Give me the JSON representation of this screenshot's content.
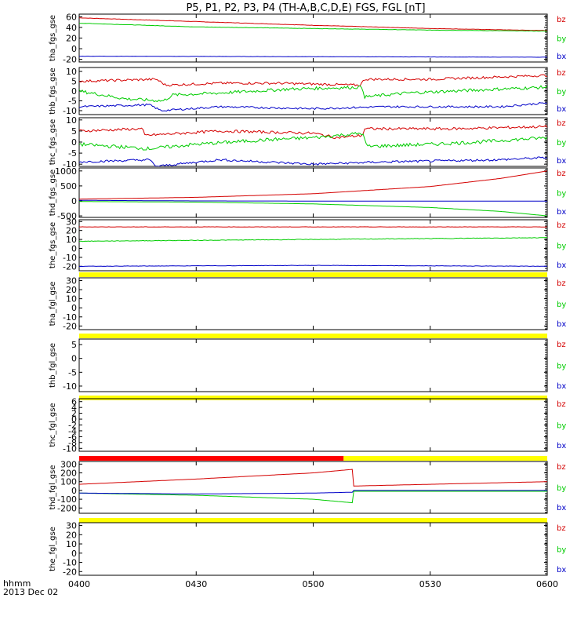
{
  "colors": {
    "bz": "#d40000",
    "by": "#00cc00",
    "bx": "#0000c8",
    "bar_good": "#ffff00",
    "bar_bad": "#ff0000"
  },
  "chart_data": {
    "type": "line",
    "title": "P5, P1, P2, P3, P4 (TH-A,B,C,D,E) FGS, FGL [nT]",
    "time_label": "hhmm",
    "date_label": "2013 Dec 02",
    "x_ticks": [
      "0400",
      "0430",
      "0500",
      "0530",
      "0600"
    ],
    "x_range_hours": [
      4.0,
      6.0
    ],
    "panels": [
      {
        "ylabel": "tha_fgs_gse",
        "ylim": [
          -25,
          65
        ],
        "yticks": [
          "60",
          "40",
          "20",
          "0",
          "-20"
        ],
        "ytick_values": [
          60,
          40,
          20,
          0,
          -20
        ],
        "series": [
          {
            "name": "bz",
            "points": [
              [
                4.0,
                58
              ],
              [
                4.5,
                51
              ],
              [
                5.0,
                44
              ],
              [
                5.5,
                38
              ],
              [
                6.0,
                34
              ]
            ],
            "noise": 0.3
          },
          {
            "name": "by",
            "points": [
              [
                4.0,
                48
              ],
              [
                4.5,
                41
              ],
              [
                5.0,
                38
              ],
              [
                5.5,
                35
              ],
              [
                6.0,
                33
              ]
            ],
            "noise": 0.3
          },
          {
            "name": "bx",
            "points": [
              [
                4.0,
                -14
              ],
              [
                6.0,
                -16
              ]
            ],
            "noise": 0.2
          }
        ],
        "bar": "none"
      },
      {
        "ylabel": "thb_fgs_gse",
        "ylim": [
          -12,
          12
        ],
        "yticks": [
          "10",
          "5",
          "0",
          "-5",
          "-10"
        ],
        "ytick_values": [
          10,
          5,
          0,
          -5,
          -10
        ],
        "series": [
          {
            "name": "bz",
            "points": [
              [
                4.0,
                5
              ],
              [
                4.33,
                6
              ],
              [
                4.37,
                3
              ],
              [
                4.6,
                4
              ],
              [
                4.85,
                4
              ],
              [
                5.2,
                3
              ],
              [
                5.22,
                6
              ],
              [
                5.5,
                6
              ],
              [
                6.0,
                8
              ]
            ],
            "noise": 0.6
          },
          {
            "name": "by",
            "points": [
              [
                4.0,
                0
              ],
              [
                4.2,
                -4
              ],
              [
                4.36,
                -5
              ],
              [
                4.4,
                -2
              ],
              [
                4.6,
                -1
              ],
              [
                4.9,
                1
              ],
              [
                5.21,
                2
              ],
              [
                5.22,
                -3
              ],
              [
                5.4,
                -1
              ],
              [
                5.6,
                0
              ],
              [
                6.0,
                2
              ]
            ],
            "noise": 0.8
          },
          {
            "name": "bx",
            "points": [
              [
                4.0,
                -8
              ],
              [
                4.3,
                -7
              ],
              [
                4.35,
                -10
              ],
              [
                4.6,
                -8
              ],
              [
                5.0,
                -9
              ],
              [
                5.3,
                -8
              ],
              [
                5.8,
                -8
              ],
              [
                6.0,
                -6
              ]
            ],
            "noise": 0.5
          }
        ],
        "bar": "none"
      },
      {
        "ylabel": "thc_fgs_gse",
        "ylim": [
          -11,
          11
        ],
        "yticks": [
          "10",
          "5",
          "0",
          "-5",
          "-10"
        ],
        "ytick_values": [
          10,
          5,
          0,
          -5,
          -10
        ],
        "series": [
          {
            "name": "bz",
            "points": [
              [
                4.0,
                5
              ],
              [
                4.27,
                6
              ],
              [
                4.28,
                3
              ],
              [
                4.6,
                5
              ],
              [
                5.0,
                4
              ],
              [
                5.1,
                2
              ],
              [
                5.21,
                3
              ],
              [
                5.22,
                6
              ],
              [
                5.6,
                6
              ],
              [
                6.0,
                7
              ]
            ],
            "noise": 0.6
          },
          {
            "name": "by",
            "points": [
              [
                4.0,
                -1
              ],
              [
                4.3,
                -3
              ],
              [
                4.5,
                -1
              ],
              [
                4.8,
                1
              ],
              [
                5.0,
                2
              ],
              [
                5.21,
                4
              ],
              [
                5.23,
                -2
              ],
              [
                5.5,
                -1
              ],
              [
                5.7,
                0
              ],
              [
                6.0,
                2
              ]
            ],
            "noise": 0.8
          },
          {
            "name": "bx",
            "points": [
              [
                4.0,
                -9
              ],
              [
                4.3,
                -8
              ],
              [
                4.33,
                -11
              ],
              [
                4.6,
                -8
              ],
              [
                5.0,
                -10
              ],
              [
                5.3,
                -9
              ],
              [
                5.8,
                -8
              ],
              [
                6.0,
                -7
              ]
            ],
            "noise": 0.5
          }
        ],
        "bar": "none"
      },
      {
        "ylabel": "thd_fgs_gse",
        "ylim": [
          -550,
          1100
        ],
        "yticks": [
          "1000",
          "500",
          "0",
          "-500"
        ],
        "ytick_values": [
          1000,
          500,
          0,
          -500
        ],
        "series": [
          {
            "name": "bz",
            "points": [
              [
                4.0,
                60
              ],
              [
                4.5,
                120
              ],
              [
                5.0,
                240
              ],
              [
                5.5,
                480
              ],
              [
                5.8,
                750
              ],
              [
                6.0,
                1000
              ]
            ],
            "noise": 0
          },
          {
            "name": "by",
            "points": [
              [
                4.0,
                -20
              ],
              [
                4.5,
                -40
              ],
              [
                5.0,
                -100
              ],
              [
                5.5,
                -220
              ],
              [
                5.8,
                -350
              ],
              [
                6.0,
                -500
              ]
            ],
            "noise": 0
          },
          {
            "name": "bx",
            "points": [
              [
                4.0,
                20
              ],
              [
                4.5,
                0
              ],
              [
                5.0,
                -5
              ],
              [
                6.0,
                -5
              ]
            ],
            "noise": 0
          }
        ],
        "bar": "none"
      },
      {
        "ylabel": "the_fgs_gse",
        "ylim": [
          -25,
          32
        ],
        "yticks": [
          "30",
          "20",
          "10",
          "0",
          "-10",
          "-20"
        ],
        "ytick_values": [
          30,
          20,
          10,
          0,
          -10,
          -20
        ],
        "series": [
          {
            "name": "bz",
            "points": [
              [
                4.0,
                24
              ],
              [
                6.0,
                24
              ]
            ],
            "noise": 0.2
          },
          {
            "name": "by",
            "points": [
              [
                4.0,
                8
              ],
              [
                4.5,
                9
              ],
              [
                5.0,
                10
              ],
              [
                6.0,
                12
              ]
            ],
            "noise": 0.3
          },
          {
            "name": "bx",
            "points": [
              [
                4.0,
                -20
              ],
              [
                5.0,
                -19
              ],
              [
                6.0,
                -20
              ]
            ],
            "noise": 0.2
          }
        ],
        "bar": "yellow"
      },
      {
        "ylabel": "tha_fgl_gse",
        "ylim": [
          -24,
          33
        ],
        "yticks": [
          "30",
          "20",
          "10",
          "0",
          "-10",
          "-20"
        ],
        "ytick_values": [
          30,
          20,
          10,
          0,
          -10,
          -20
        ],
        "series": [],
        "bar": "yellow"
      },
      {
        "ylabel": "thb_fgl_gse",
        "ylim": [
          -12,
          7
        ],
        "yticks": [
          "5",
          "0",
          "-5",
          "-10"
        ],
        "ytick_values": [
          5,
          0,
          -5,
          -10
        ],
        "series": [],
        "bar": "yellow"
      },
      {
        "ylabel": "thc_fgl_gse",
        "ylim": [
          -11,
          7
        ],
        "yticks": [
          "6",
          "4",
          "2",
          "0",
          "-2",
          "-4",
          "-6",
          "-8",
          "-10"
        ],
        "ytick_values": [
          6,
          4,
          2,
          0,
          -2,
          -4,
          -6,
          -8,
          -10
        ],
        "series": [],
        "bar": "split"
      },
      {
        "ylabel": "thd_fgl_gse",
        "ylim": [
          -260,
          330
        ],
        "yticks": [
          "300",
          "200",
          "100",
          "0",
          "-100",
          "-200"
        ],
        "ytick_values": [
          300,
          200,
          100,
          0,
          -100,
          -200
        ],
        "series": [
          {
            "name": "bz",
            "points": [
              [
                4.0,
                70
              ],
              [
                4.5,
                130
              ],
              [
                5.0,
                200
              ],
              [
                5.167,
                240
              ],
              [
                5.168,
                50
              ],
              [
                5.5,
                70
              ],
              [
                6.0,
                100
              ]
            ],
            "noise": 0
          },
          {
            "name": "by",
            "points": [
              [
                4.0,
                -30
              ],
              [
                4.5,
                -55
              ],
              [
                5.0,
                -100
              ],
              [
                5.167,
                -140
              ],
              [
                5.168,
                -10
              ],
              [
                5.5,
                -10
              ],
              [
                6.0,
                -10
              ]
            ],
            "noise": 0
          },
          {
            "name": "bx",
            "points": [
              [
                4.0,
                -30
              ],
              [
                4.5,
                -40
              ],
              [
                5.0,
                -30
              ],
              [
                5.167,
                -20
              ],
              [
                5.168,
                0
              ],
              [
                6.0,
                0
              ]
            ],
            "noise": 0
          }
        ],
        "bar": "yellow"
      },
      {
        "ylabel": "the_fgl_gse",
        "ylim": [
          -24,
          33
        ],
        "yticks": [
          "30",
          "20",
          "10",
          "0",
          "-10",
          "-20"
        ],
        "ytick_values": [
          30,
          20,
          10,
          0,
          -10,
          -20
        ],
        "series": [],
        "bar": "none"
      }
    ],
    "split_bar_fraction": 0.565,
    "legend": [
      "bz",
      "by",
      "bx"
    ]
  }
}
